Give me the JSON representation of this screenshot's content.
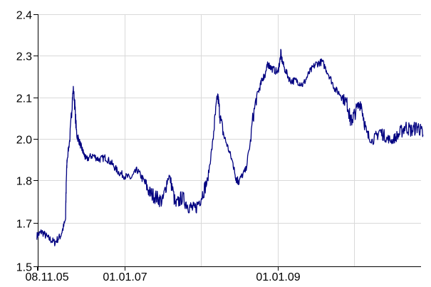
{
  "chart_data": {
    "type": "line",
    "title": "",
    "xlabel": "",
    "ylabel": "",
    "x_ticks": [
      "08.11.05",
      "01.01.07",
      "01.01.09"
    ],
    "y_ticks": [
      "1.5",
      "1.7",
      "1.8",
      "2.0",
      "2.1",
      "2.3",
      "2.4"
    ],
    "grid": true,
    "legend": "none",
    "colors": {
      "line": "#000080",
      "grid": "#d9d9d9",
      "axis": "#000000",
      "background": "#ffffff"
    },
    "series": [
      {
        "x": [
          "08.11.05",
          "2005-12-01",
          "2006-01-01",
          "2006-02-01",
          "2006-03-01",
          "2006-03-25",
          "2006-04-01",
          "2006-04-20",
          "2006-05-01",
          "2006-05-15",
          "2006-06-01",
          "2006-06-15",
          "2006-07-01",
          "2006-08-01",
          "2006-09-01",
          "2006-10-01",
          "2006-11-01",
          "2006-12-01",
          "01.01.07",
          "2007-02-01",
          "2007-03-01",
          "2007-04-01",
          "2007-05-01",
          "2007-06-01",
          "2007-07-01",
          "2007-08-01",
          "2007-09-01",
          "2007-10-01",
          "2007-11-01",
          "2007-12-01",
          "2008-01-01",
          "2008-02-01",
          "2008-03-01",
          "2008-03-20",
          "2008-04-01",
          "2008-05-01",
          "2008-06-01",
          "2008-06-15",
          "2008-07-01",
          "2008-08-01",
          "2008-09-01",
          "2008-10-01",
          "2008-10-20",
          "2008-11-01",
          "2008-11-15",
          "2008-12-01",
          "01.01.09",
          "2009-01-15",
          "2009-02-01",
          "2009-03-01",
          "2009-04-01",
          "2009-05-01",
          "2009-06-01",
          "2009-07-01",
          "2009-08-01",
          "2009-09-01",
          "2009-10-01",
          "2009-11-01",
          "2009-12-01",
          "2009-12-15",
          "2010-01-01",
          "2010-02-01",
          "2010-03-01",
          "2010-04-01",
          "2010-05-01",
          "2010-06-01",
          "2010-07-01",
          "2010-08-01",
          "2010-09-01",
          "2010-10-01",
          "2010-11-01",
          "2010-11-25"
        ],
        "y": [
          1.64,
          1.66,
          1.63,
          1.61,
          1.64,
          1.71,
          1.9,
          2.04,
          2.14,
          2.02,
          1.98,
          1.94,
          1.9,
          1.92,
          1.9,
          1.91,
          1.88,
          1.84,
          1.82,
          1.81,
          1.85,
          1.8,
          1.77,
          1.76,
          1.75,
          1.82,
          1.74,
          1.76,
          1.74,
          1.73,
          1.76,
          1.8,
          2.02,
          2.11,
          2.05,
          1.98,
          1.88,
          1.81,
          1.8,
          1.85,
          2.04,
          2.13,
          2.19,
          2.21,
          2.26,
          2.24,
          2.22,
          2.3,
          2.24,
          2.18,
          2.18,
          2.16,
          2.22,
          2.26,
          2.27,
          2.21,
          2.14,
          2.11,
          2.08,
          2.04,
          2.06,
          2.09,
          2.01,
          1.99,
          2.02,
          2.0,
          1.99,
          2.01,
          2.03,
          2.02,
          2.03,
          2.01
        ]
      }
    ]
  }
}
